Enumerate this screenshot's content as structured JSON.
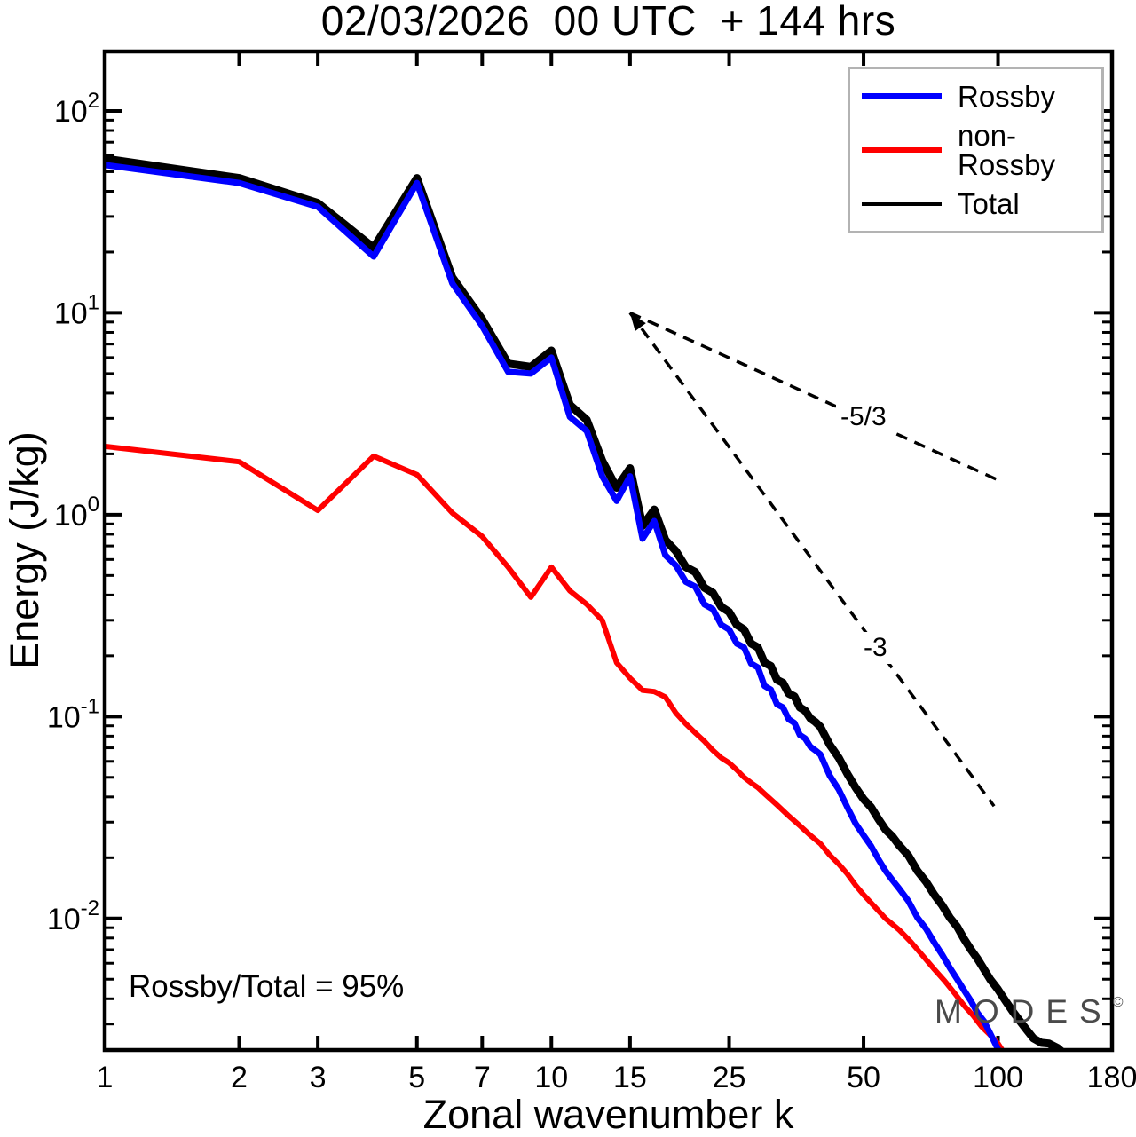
{
  "title": "02/03/2026  00 UTC  + 144 hrs",
  "annotations": {
    "ratio_text": "Rossby/Total = 95%"
  },
  "watermark": {
    "text": "MODES",
    "sup": "©"
  },
  "legend": {
    "items": [
      {
        "label": "Rossby",
        "color": "#0000ff",
        "swatch_height": 6
      },
      {
        "label": "non-Rossby",
        "color": "#ff0000",
        "swatch_height": 6
      },
      {
        "label": "Total",
        "color": "#000000",
        "swatch_height": 4
      }
    ]
  },
  "chart_data": {
    "type": "line",
    "title": "02/03/2026  00 UTC  + 144 hrs",
    "xlabel": "Zonal wavenumber k",
    "ylabel": "Energy (J/kg)",
    "x_scale": "log",
    "y_scale": "log",
    "xlim": [
      1,
      180
    ],
    "ylim": [
      0.00223,
      197
    ],
    "x_ticks": [
      1,
      2,
      3,
      5,
      7,
      10,
      15,
      25,
      50,
      100,
      180
    ],
    "y_tick_exponents": [
      2,
      1,
      0,
      -1,
      -2
    ],
    "grid": false,
    "legend_position": "top-right",
    "frame_color": "#000000",
    "series": [
      {
        "name": "non-Rossby",
        "color": "#ff0000",
        "width": 6,
        "points": [
          [
            1,
            2.18
          ],
          [
            2,
            1.83
          ],
          [
            3,
            1.05
          ],
          [
            4,
            1.95
          ],
          [
            5,
            1.58
          ],
          [
            6,
            1.02
          ],
          [
            7,
            0.78
          ],
          [
            8,
            0.55
          ],
          [
            9,
            0.39
          ],
          [
            10,
            0.55
          ],
          [
            11,
            0.42
          ],
          [
            12,
            0.36
          ],
          [
            13,
            0.3
          ],
          [
            14,
            0.185
          ],
          [
            15,
            0.155
          ],
          [
            16,
            0.135
          ],
          [
            17,
            0.133
          ],
          [
            18,
            0.125
          ],
          [
            19,
            0.104
          ],
          [
            20,
            0.092
          ],
          [
            21,
            0.083
          ],
          [
            22,
            0.0755
          ],
          [
            23,
            0.068
          ],
          [
            24,
            0.0625
          ],
          [
            25,
            0.059
          ],
          [
            26,
            0.0545
          ],
          [
            27,
            0.05
          ],
          [
            28,
            0.047
          ],
          [
            29,
            0.0445
          ],
          [
            30,
            0.0415
          ],
          [
            32,
            0.0365
          ],
          [
            34,
            0.0322
          ],
          [
            36,
            0.0288
          ],
          [
            38,
            0.0258
          ],
          [
            40,
            0.0235
          ],
          [
            42,
            0.0206
          ],
          [
            44,
            0.0186
          ],
          [
            46,
            0.0166
          ],
          [
            48,
            0.0146
          ],
          [
            50,
            0.0131
          ],
          [
            53,
            0.0114
          ],
          [
            56,
            0.01
          ],
          [
            60,
            0.0088
          ],
          [
            64,
            0.0076
          ],
          [
            68,
            0.0065
          ],
          [
            72,
            0.0056
          ],
          [
            76,
            0.0049
          ],
          [
            80,
            0.00425
          ],
          [
            84,
            0.0037
          ],
          [
            88,
            0.0033
          ],
          [
            92,
            0.0029
          ],
          [
            96,
            0.00265
          ],
          [
            100,
            0.0024
          ],
          [
            104,
            0.0021
          ],
          [
            108,
            0.0019
          ],
          [
            112,
            0.0017
          ],
          [
            116,
            0.0015
          ]
        ]
      },
      {
        "name": "Total",
        "color": "#000000",
        "width": 9,
        "points": [
          [
            1,
            58
          ],
          [
            2,
            46.5
          ],
          [
            3,
            35
          ],
          [
            4,
            21
          ],
          [
            5,
            46.5
          ],
          [
            6,
            15
          ],
          [
            7,
            9.3
          ],
          [
            8,
            5.6
          ],
          [
            9,
            5.4
          ],
          [
            10,
            6.5
          ],
          [
            11,
            3.5
          ],
          [
            12,
            2.95
          ],
          [
            13,
            1.85
          ],
          [
            14,
            1.36
          ],
          [
            15,
            1.7
          ],
          [
            16,
            0.88
          ],
          [
            17,
            1.06
          ],
          [
            18,
            0.75
          ],
          [
            19,
            0.66
          ],
          [
            20,
            0.55
          ],
          [
            21,
            0.52
          ],
          [
            22,
            0.435
          ],
          [
            23,
            0.41
          ],
          [
            24,
            0.35
          ],
          [
            25,
            0.33
          ],
          [
            26,
            0.285
          ],
          [
            27,
            0.27
          ],
          [
            28,
            0.23
          ],
          [
            29,
            0.22
          ],
          [
            30,
            0.185
          ],
          [
            31,
            0.178
          ],
          [
            32,
            0.152
          ],
          [
            33,
            0.147
          ],
          [
            34,
            0.13
          ],
          [
            35,
            0.126
          ],
          [
            36,
            0.111
          ],
          [
            37,
            0.107
          ],
          [
            38,
            0.098
          ],
          [
            39,
            0.094
          ],
          [
            40,
            0.089
          ],
          [
            42,
            0.0725
          ],
          [
            44,
            0.0625
          ],
          [
            46,
            0.052
          ],
          [
            48,
            0.0445
          ],
          [
            50,
            0.039
          ],
          [
            52,
            0.0355
          ],
          [
            54,
            0.031
          ],
          [
            56,
            0.0275
          ],
          [
            58,
            0.0255
          ],
          [
            60,
            0.0231
          ],
          [
            63,
            0.0205
          ],
          [
            66,
            0.0172
          ],
          [
            69,
            0.0152
          ],
          [
            72,
            0.0131
          ],
          [
            75,
            0.0116
          ],
          [
            78,
            0.0101
          ],
          [
            81,
            0.0091
          ],
          [
            84,
            0.0079
          ],
          [
            87,
            0.007
          ],
          [
            90,
            0.0063
          ],
          [
            93,
            0.0056
          ],
          [
            96,
            0.005
          ],
          [
            100,
            0.00445
          ],
          [
            104,
            0.0039
          ],
          [
            108,
            0.00345
          ],
          [
            112,
            0.0031
          ],
          [
            116,
            0.0028
          ],
          [
            120,
            0.00255
          ],
          [
            125,
            0.00242
          ],
          [
            130,
            0.0024
          ],
          [
            136,
            0.00228
          ],
          [
            142,
            0.0021
          ],
          [
            148,
            0.0017
          ],
          [
            152,
            0.0014
          ]
        ]
      },
      {
        "name": "Rossby",
        "color": "#0000ff",
        "width": 7,
        "points": [
          [
            1,
            54
          ],
          [
            2,
            44
          ],
          [
            3,
            33.5
          ],
          [
            4,
            19
          ],
          [
            5,
            44
          ],
          [
            6,
            14
          ],
          [
            7,
            8.6
          ],
          [
            8,
            5.1
          ],
          [
            9,
            5.0
          ],
          [
            10,
            6.0
          ],
          [
            11,
            3.05
          ],
          [
            12,
            2.6
          ],
          [
            13,
            1.55
          ],
          [
            14,
            1.17
          ],
          [
            15,
            1.55
          ],
          [
            16,
            0.76
          ],
          [
            17,
            0.93
          ],
          [
            18,
            0.63
          ],
          [
            19,
            0.56
          ],
          [
            20,
            0.465
          ],
          [
            21,
            0.44
          ],
          [
            22,
            0.36
          ],
          [
            23,
            0.34
          ],
          [
            24,
            0.285
          ],
          [
            25,
            0.27
          ],
          [
            26,
            0.23
          ],
          [
            27,
            0.22
          ],
          [
            28,
            0.183
          ],
          [
            29,
            0.175
          ],
          [
            30,
            0.142
          ],
          [
            31,
            0.136
          ],
          [
            32,
            0.115
          ],
          [
            33,
            0.111
          ],
          [
            34,
            0.097
          ],
          [
            35,
            0.093
          ],
          [
            36,
            0.081
          ],
          [
            37,
            0.078
          ],
          [
            38,
            0.071
          ],
          [
            39,
            0.068
          ],
          [
            40,
            0.065
          ],
          [
            42,
            0.051
          ],
          [
            44,
            0.0435
          ],
          [
            46,
            0.0355
          ],
          [
            48,
            0.0295
          ],
          [
            50,
            0.0258
          ],
          [
            52,
            0.0228
          ],
          [
            54,
            0.0196
          ],
          [
            56,
            0.0172
          ],
          [
            58,
            0.0155
          ],
          [
            60,
            0.0141
          ],
          [
            63,
            0.0122
          ],
          [
            66,
            0.0101
          ],
          [
            69,
            0.0089
          ],
          [
            72,
            0.0076
          ],
          [
            75,
            0.0066
          ],
          [
            78,
            0.0057
          ],
          [
            81,
            0.005
          ],
          [
            84,
            0.0044
          ],
          [
            87,
            0.0039
          ],
          [
            90,
            0.0034
          ],
          [
            93,
            0.0031
          ],
          [
            96,
            0.0027
          ],
          [
            100,
            0.00225
          ],
          [
            104,
            0.0018
          ],
          [
            108,
            0.0014
          ]
        ]
      }
    ],
    "reference_lines": [
      {
        "label": "-5/3",
        "from": [
          15,
          10
        ],
        "to": [
          99,
          1.5
        ]
      },
      {
        "label": "-3",
        "from": [
          15,
          10
        ],
        "to": [
          98,
          0.036
        ]
      }
    ],
    "reference_arrow_at": [
      15,
      10
    ]
  }
}
